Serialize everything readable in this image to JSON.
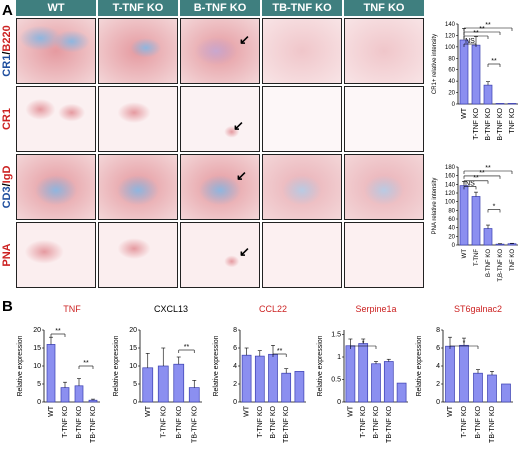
{
  "panel_a_label": "A",
  "panel_b_label": "B",
  "columns": [
    "WT",
    "T-TNF KO",
    "B-TNF KO",
    "TB-TNF KO",
    "TNF KO"
  ],
  "row_labels": [
    {
      "parts": [
        {
          "t": "CR1",
          "c": "#1f4e9e"
        },
        {
          "t": "/",
          "c": "#000000"
        },
        {
          "t": "B220",
          "c": "#cc2222"
        }
      ]
    },
    {
      "parts": [
        {
          "t": "CR1",
          "c": "#cc2222"
        }
      ]
    },
    {
      "parts": [
        {
          "t": "CD3",
          "c": "#1f4e9e"
        },
        {
          "t": "/",
          "c": "#000000"
        },
        {
          "t": "IgD",
          "c": "#cc2222"
        }
      ]
    },
    {
      "parts": [
        {
          "t": "PNA",
          "c": "#cc2222"
        }
      ]
    }
  ],
  "colors": {
    "header_bg": "#3f7f7f",
    "bar_fill": "#8b8ff0",
    "bar_stroke": "#3b3fb0",
    "red_label": "#cc2222",
    "tissue_pink": "#f3d6d8",
    "tissue_red": "#e59aa0",
    "tissue_blue": "#8fb6df"
  },
  "chart_data": [
    {
      "id": "cr1",
      "type": "bar",
      "ylabel": "CR1+ relative intensity",
      "yticks": [
        0,
        20,
        40,
        60,
        80,
        100,
        120,
        140
      ],
      "ylim": [
        0,
        140
      ],
      "categories": [
        "WT",
        "T-TNF KO",
        "B-TNF KO",
        "T,B-TNF KO",
        "TNF KO"
      ],
      "values": [
        112,
        103,
        33,
        1,
        1
      ],
      "errors": [
        20,
        15,
        6,
        0,
        0
      ],
      "brackets": [
        {
          "from": 0,
          "to": 1,
          "text": "NS"
        },
        {
          "from": 0,
          "to": 2,
          "text": "**"
        },
        {
          "from": 0,
          "to": 3,
          "text": "**"
        },
        {
          "from": 0,
          "to": 4,
          "text": "**"
        },
        {
          "from": 2,
          "to": 3,
          "text": "**"
        }
      ]
    },
    {
      "id": "pna",
      "type": "bar",
      "ylabel": "PNA relative intensity",
      "yticks": [
        0,
        20,
        40,
        60,
        80,
        100,
        120,
        140,
        160,
        180
      ],
      "ylim": [
        0,
        180
      ],
      "categories": [
        "WT",
        "T-TNF",
        "B-TNF KO",
        "T,B-TNF KO",
        "TNF KO"
      ],
      "values": [
        137,
        112,
        38,
        2,
        3
      ],
      "errors": [
        10,
        10,
        8,
        1,
        1
      ],
      "brackets": [
        {
          "from": 0,
          "to": 1,
          "text": "NS"
        },
        {
          "from": 0,
          "to": 2,
          "text": "**"
        },
        {
          "from": 0,
          "to": 3,
          "text": "**"
        },
        {
          "from": 0,
          "to": 4,
          "text": "**"
        },
        {
          "from": 2,
          "to": 3,
          "text": "*"
        }
      ]
    },
    {
      "id": "tnf",
      "type": "bar",
      "title": "TNF",
      "title_color": "#cc2222",
      "ylabel": "Relative expression",
      "yticks": [
        0,
        5,
        10,
        15,
        20
      ],
      "ylim": [
        0,
        20
      ],
      "categories": [
        "WT",
        "T-TNF KO",
        "B-TNF KO",
        "TB-TNF KO"
      ],
      "values": [
        16,
        4,
        4.5,
        0.5
      ],
      "errors": [
        2,
        1.5,
        2,
        0.3
      ],
      "brackets": [
        {
          "from": 0,
          "to": 1,
          "text": "**"
        },
        {
          "from": 2,
          "to": 3,
          "text": "**"
        }
      ]
    },
    {
      "id": "cxcl13",
      "type": "bar",
      "title": "CXCL13",
      "title_color": "#000000",
      "ylabel": "Relative expression",
      "yticks": [
        0,
        5,
        10,
        15,
        20
      ],
      "ylim": [
        0,
        20
      ],
      "categories": [
        "WT",
        "T-TNF KO",
        "B-TNF KO",
        "TB-TNF KO"
      ],
      "values": [
        9.5,
        10,
        10.5,
        4
      ],
      "errors": [
        4,
        5,
        2,
        2
      ],
      "brackets": [
        {
          "from": 2,
          "to": 3,
          "text": "**"
        }
      ]
    },
    {
      "id": "ccl22",
      "type": "bar",
      "title": "CCL22",
      "title_color": "#cc2222",
      "ylabel": "Relative expression",
      "yticks": [
        0,
        2,
        4,
        6,
        8
      ],
      "ylim": [
        0,
        8
      ],
      "categories": [
        "WT",
        "T-TNF KO",
        "B-TNF KO",
        "TB-TNF KO"
      ],
      "values": [
        5.2,
        5.1,
        5.3,
        3.2
      ],
      "errors": [
        0.8,
        0.6,
        1.0,
        0.5
      ],
      "extra_bars": [
        3.4
      ],
      "brackets": [
        {
          "from": 2,
          "to": 3,
          "text": "**"
        }
      ]
    },
    {
      "id": "serpine1a",
      "type": "bar",
      "title": "Serpine1a",
      "title_color": "#cc2222",
      "ylabel": "Relative expression",
      "yticks": [
        0.0,
        0.5,
        1.0,
        1.5
      ],
      "ylim": [
        0,
        1.6
      ],
      "categories": [
        "WT",
        "T-TNF KO",
        "B-TNF KO",
        "TB-TNF KO"
      ],
      "values": [
        1.25,
        1.3,
        0.85,
        0.9
      ],
      "errors": [
        0.15,
        0.1,
        0.05,
        0.05
      ],
      "extra_bars": [
        0.42
      ],
      "brackets": [
        {
          "from": 0,
          "to": 2,
          "text": "*"
        }
      ]
    },
    {
      "id": "st6galnac2",
      "type": "bar",
      "title": "ST6galnac2",
      "title_color": "#cc2222",
      "ylabel": "Relative expression",
      "yticks": [
        0,
        2,
        4,
        6,
        8
      ],
      "ylim": [
        0,
        8
      ],
      "categories": [
        "WT",
        "T-TNF KO",
        "B-TNF KO",
        "TB-TNF KO"
      ],
      "values": [
        6.2,
        6.3,
        3.2,
        3.0
      ],
      "errors": [
        1.0,
        0.8,
        0.4,
        0.4
      ],
      "extra_bars": [
        2.0
      ],
      "brackets": [
        {
          "from": 0,
          "to": 2,
          "text": "*"
        }
      ]
    }
  ]
}
